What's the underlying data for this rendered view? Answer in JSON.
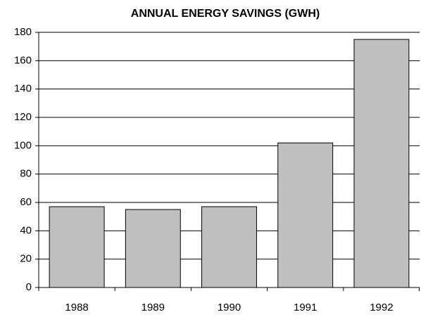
{
  "chart_data": {
    "type": "bar",
    "title": "ANNUAL ENERGY SAVINGS (GWH)",
    "categories": [
      "1988",
      "1989",
      "1990",
      "1991",
      "1992"
    ],
    "values": [
      57,
      55,
      57,
      102,
      175
    ],
    "color": "#c0c0c0",
    "ylim": [
      0,
      180
    ],
    "yticks": [
      0,
      20,
      40,
      60,
      80,
      100,
      120,
      140,
      160,
      180
    ],
    "grid": true
  }
}
